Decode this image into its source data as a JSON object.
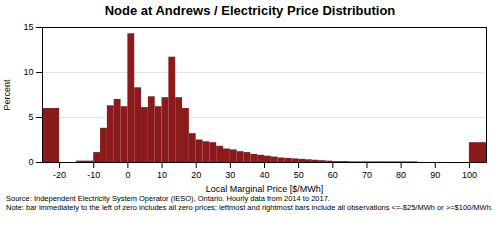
{
  "chart_data": {
    "type": "histogram",
    "title": "Node at Andrews / Electricity Price Distribution",
    "xlabel": "Local Marginal Price [$/MWh]",
    "ylabel": "Percent",
    "x": [
      -25,
      -15,
      -10,
      -8,
      -6,
      -4,
      -2,
      0,
      2,
      4,
      6,
      8,
      10,
      12,
      14,
      16,
      18,
      20,
      22,
      24,
      26,
      28,
      30,
      32,
      34,
      36,
      38,
      40,
      42,
      44,
      46,
      48,
      50,
      52,
      54,
      56,
      58,
      60,
      65,
      75,
      100
    ],
    "widths": [
      5,
      5,
      2,
      2,
      2,
      2,
      2,
      2,
      2,
      2,
      2,
      2,
      2,
      2,
      2,
      2,
      2,
      2,
      2,
      2,
      2,
      2,
      2,
      2,
      2,
      2,
      2,
      2,
      2,
      2,
      2,
      2,
      2,
      2,
      2,
      2,
      2,
      5,
      10,
      10,
      5
    ],
    "values": [
      6.0,
      0.15,
      1.1,
      3.8,
      6.3,
      7.0,
      6.2,
      14.3,
      8.3,
      6.1,
      7.3,
      6.2,
      7.2,
      11.7,
      7.2,
      6.0,
      3.2,
      2.5,
      2.3,
      2.2,
      1.8,
      1.5,
      1.4,
      1.2,
      1.1,
      0.9,
      0.8,
      0.7,
      0.6,
      0.5,
      0.45,
      0.4,
      0.35,
      0.3,
      0.25,
      0.2,
      0.15,
      0.1,
      0.07,
      0.07,
      2.2
    ],
    "color": "#8B1A1A",
    "xlim": [
      -25,
      105
    ],
    "ylim": [
      0,
      15
    ],
    "xticks": [
      -20,
      -10,
      0,
      10,
      20,
      30,
      40,
      50,
      60,
      70,
      80,
      90,
      100
    ],
    "yticks": [
      0,
      5,
      10,
      15
    ],
    "grid": true,
    "annotations": [
      "Source: Independent Electricity System Operator (IESO), Ontario. Hourly data from 2014 to 2017.",
      "Note: bar immediately to the left of zero includes all zero prices; leftmost and rightmost bars include all observations <=-$25/MWh or >=$100/MWh."
    ]
  }
}
